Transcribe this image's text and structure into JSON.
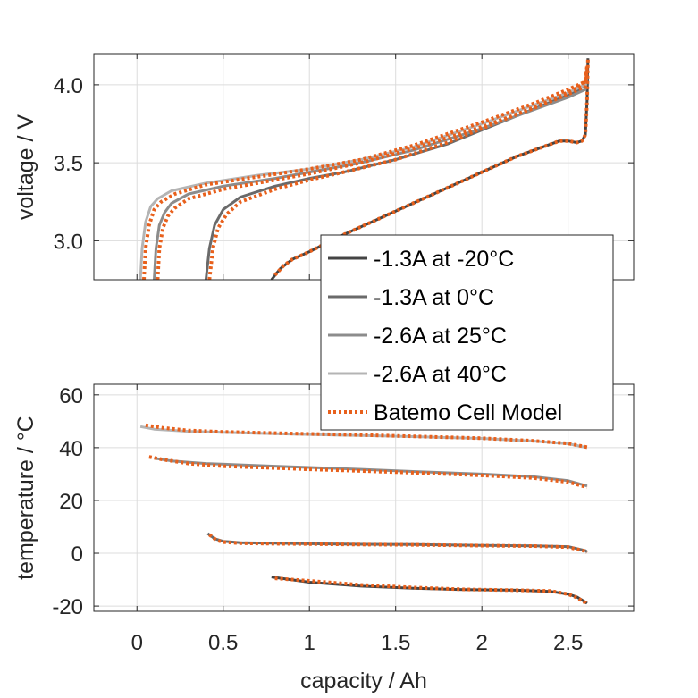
{
  "chart_data": [
    {
      "type": "line",
      "panel": "top",
      "ylabel": "voltage / V",
      "xlabel": "",
      "xlim": [
        -0.25,
        2.88
      ],
      "ylim": [
        2.75,
        4.2
      ],
      "xticks": [
        0,
        0.5,
        1,
        1.5,
        2,
        2.5
      ],
      "yticks": [
        3.0,
        3.5,
        4.0
      ],
      "ytick_labels": [
        "3.0",
        "3.5",
        "4.0"
      ],
      "grid": true,
      "series": [
        {
          "name": "-1.3A at -20°C",
          "color": "#444444",
          "dash": "solid",
          "x": [
            0.78,
            0.83,
            0.9,
            1.0,
            1.2,
            1.4,
            1.6,
            1.8,
            2.0,
            2.2,
            2.35,
            2.45,
            2.5,
            2.55,
            2.58,
            2.6,
            2.61,
            2.615
          ],
          "y": [
            2.75,
            2.82,
            2.88,
            2.93,
            3.04,
            3.14,
            3.24,
            3.34,
            3.44,
            3.54,
            3.6,
            3.64,
            3.64,
            3.63,
            3.64,
            3.68,
            3.9,
            4.17
          ]
        },
        {
          "name": "-1.3A at 0°C",
          "color": "#6a6a6a",
          "dash": "solid",
          "x": [
            0.4,
            0.42,
            0.45,
            0.5,
            0.6,
            0.8,
            1.0,
            1.2,
            1.5,
            1.8,
            2.0,
            2.2,
            2.4,
            2.55,
            2.6,
            2.61
          ],
          "y": [
            2.75,
            2.95,
            3.1,
            3.2,
            3.28,
            3.35,
            3.4,
            3.44,
            3.52,
            3.62,
            3.71,
            3.8,
            3.89,
            3.96,
            4.0,
            4.1
          ]
        },
        {
          "name": "-2.6A at 25°C",
          "color": "#8c8c8c",
          "dash": "solid",
          "x": [
            0.1,
            0.11,
            0.13,
            0.16,
            0.2,
            0.3,
            0.5,
            0.8,
            1.0,
            1.3,
            1.6,
            2.0,
            2.3,
            2.5,
            2.6,
            2.61
          ],
          "y": [
            2.75,
            2.95,
            3.1,
            3.18,
            3.24,
            3.3,
            3.35,
            3.4,
            3.44,
            3.5,
            3.58,
            3.72,
            3.84,
            3.92,
            3.97,
            4.05
          ]
        },
        {
          "name": "-2.6A at 40°C",
          "color": "#b4b4b4",
          "dash": "solid",
          "x": [
            0.02,
            0.03,
            0.05,
            0.08,
            0.12,
            0.2,
            0.4,
            0.7,
            1.0,
            1.3,
            1.6,
            2.0,
            2.3,
            2.5,
            2.6,
            2.61
          ],
          "y": [
            2.75,
            2.95,
            3.12,
            3.22,
            3.27,
            3.32,
            3.37,
            3.42,
            3.46,
            3.52,
            3.6,
            3.75,
            3.87,
            3.95,
            4.0,
            4.07
          ]
        },
        {
          "name": "Batemo Cell Model",
          "color": "#e8601c",
          "dash": "dotted",
          "x": [
            0.8,
            0.85,
            0.9,
            1.0,
            1.2,
            1.4,
            1.6,
            1.8,
            2.0,
            2.2,
            2.35,
            2.45,
            2.5,
            2.55,
            2.58,
            2.6,
            2.61,
            2.615
          ],
          "y": [
            2.78,
            2.84,
            2.88,
            2.93,
            3.04,
            3.14,
            3.24,
            3.34,
            3.44,
            3.54,
            3.6,
            3.64,
            3.64,
            3.63,
            3.64,
            3.68,
            3.9,
            4.17
          ]
        },
        {
          "name": "",
          "color": "#e8601c",
          "dash": "dotted",
          "x": [
            0.42,
            0.44,
            0.47,
            0.52,
            0.6,
            0.8,
            1.0,
            1.2,
            1.5,
            1.8,
            2.0,
            2.2,
            2.4,
            2.55,
            2.6,
            2.61
          ],
          "y": [
            2.75,
            2.95,
            3.08,
            3.17,
            3.25,
            3.33,
            3.39,
            3.44,
            3.52,
            3.63,
            3.72,
            3.81,
            3.9,
            3.98,
            4.02,
            4.12
          ]
        },
        {
          "name": "",
          "color": "#e8601c",
          "dash": "dotted",
          "x": [
            0.12,
            0.13,
            0.15,
            0.18,
            0.22,
            0.3,
            0.5,
            0.8,
            1.0,
            1.3,
            1.6,
            2.0,
            2.3,
            2.5,
            2.6,
            2.61
          ],
          "y": [
            2.75,
            2.95,
            3.08,
            3.16,
            3.21,
            3.27,
            3.33,
            3.39,
            3.43,
            3.5,
            3.59,
            3.73,
            3.85,
            3.94,
            3.99,
            4.08
          ]
        },
        {
          "name": "",
          "color": "#e8601c",
          "dash": "dotted",
          "x": [
            0.04,
            0.05,
            0.07,
            0.1,
            0.14,
            0.22,
            0.4,
            0.7,
            1.0,
            1.3,
            1.6,
            2.0,
            2.3,
            2.5,
            2.6,
            2.61
          ],
          "y": [
            2.75,
            2.95,
            3.1,
            3.2,
            3.25,
            3.3,
            3.36,
            3.41,
            3.46,
            3.52,
            3.61,
            3.76,
            3.88,
            3.97,
            4.02,
            4.1
          ]
        }
      ]
    },
    {
      "type": "line",
      "panel": "bottom",
      "ylabel": "temperature / °C",
      "xlabel": "capacity / Ah",
      "xlim": [
        -0.25,
        2.88
      ],
      "ylim": [
        -22,
        64
      ],
      "xticks": [
        0,
        0.5,
        1,
        1.5,
        2,
        2.5
      ],
      "xtick_labels": [
        "0",
        "0.5",
        "1",
        "1.5",
        "2",
        "2.5"
      ],
      "yticks": [
        -20,
        0,
        20,
        40,
        60
      ],
      "ytick_labels": [
        "-20",
        "0",
        "20",
        "40",
        "60"
      ],
      "grid": true,
      "series": [
        {
          "name": "-1.3A at -20°C",
          "color": "#444444",
          "dash": "solid",
          "x": [
            0.78,
            1.0,
            1.3,
            1.6,
            1.9,
            2.2,
            2.4,
            2.5,
            2.55,
            2.6,
            2.61
          ],
          "y": [
            -9,
            -11,
            -12.5,
            -13.3,
            -13.8,
            -14,
            -14.5,
            -15.5,
            -16.5,
            -18.5,
            -19
          ]
        },
        {
          "name": "-1.3A at 0°C",
          "color": "#6a6a6a",
          "dash": "solid",
          "x": [
            0.41,
            0.45,
            0.5,
            0.6,
            0.8,
            1.0,
            1.3,
            1.6,
            2.0,
            2.3,
            2.5,
            2.6,
            2.61
          ],
          "y": [
            7.5,
            5.5,
            4.5,
            4,
            3.8,
            3.6,
            3.4,
            3.3,
            3,
            2.8,
            2.5,
            1,
            0.5
          ]
        },
        {
          "name": "-2.6A at 25°C",
          "color": "#8c8c8c",
          "dash": "solid",
          "x": [
            0.1,
            0.2,
            0.4,
            0.6,
            0.8,
            1.0,
            1.3,
            1.6,
            2.0,
            2.3,
            2.5,
            2.61
          ],
          "y": [
            36,
            35,
            34,
            33.5,
            33,
            32.5,
            31.8,
            31,
            30,
            29,
            27.5,
            25.5
          ]
        },
        {
          "name": "-2.6A at 40°C",
          "color": "#b4b4b4",
          "dash": "solid",
          "x": [
            0.02,
            0.1,
            0.3,
            0.5,
            0.8,
            1.0,
            1.3,
            1.6,
            2.0,
            2.3,
            2.5,
            2.61
          ],
          "y": [
            48,
            47,
            46.2,
            45.8,
            45.3,
            45,
            44.6,
            44.2,
            43.5,
            42.5,
            41.5,
            40
          ]
        },
        {
          "name": "Batemo Cell Model",
          "color": "#e8601c",
          "dash": "dotted",
          "x": [
            0.8,
            1.0,
            1.3,
            1.6,
            1.9,
            2.2,
            2.4,
            2.5,
            2.55,
            2.6,
            2.61
          ],
          "y": [
            -9.5,
            -10.5,
            -12,
            -13,
            -13.7,
            -14,
            -14.3,
            -15.5,
            -16.8,
            -18.8,
            -19.5
          ]
        },
        {
          "name": "",
          "color": "#e8601c",
          "dash": "dotted",
          "x": [
            0.42,
            0.46,
            0.5,
            0.6,
            0.8,
            1.0,
            1.3,
            1.6,
            2.0,
            2.3,
            2.5,
            2.6,
            2.61
          ],
          "y": [
            7,
            5,
            4.2,
            3.8,
            3.6,
            3.5,
            3.3,
            3.2,
            2.9,
            2.7,
            2.3,
            0.8,
            0.2
          ]
        },
        {
          "name": "",
          "color": "#e8601c",
          "dash": "dotted",
          "x": [
            0.07,
            0.15,
            0.3,
            0.5,
            0.8,
            1.0,
            1.3,
            1.6,
            2.0,
            2.3,
            2.5,
            2.61
          ],
          "y": [
            36.5,
            35.5,
            34,
            33,
            32.3,
            31.8,
            31.2,
            30.5,
            29.5,
            28.5,
            27,
            25
          ]
        },
        {
          "name": "",
          "color": "#e8601c",
          "dash": "dotted",
          "x": [
            0.05,
            0.15,
            0.3,
            0.5,
            0.8,
            1.0,
            1.3,
            1.6,
            2.0,
            2.3,
            2.5,
            2.61
          ],
          "y": [
            48.5,
            47.5,
            46.5,
            46,
            45.5,
            45.2,
            44.8,
            44.3,
            43.6,
            42.6,
            41.6,
            40.2
          ]
        }
      ]
    }
  ],
  "legend": {
    "location": "center-right",
    "entries": [
      {
        "label": "-1.3A at -20°C",
        "color": "#444444",
        "dash": "solid"
      },
      {
        "label": "-1.3A at 0°C",
        "color": "#6a6a6a",
        "dash": "solid"
      },
      {
        "label": "-2.6A at 25°C",
        "color": "#8c8c8c",
        "dash": "solid"
      },
      {
        "label": "-2.6A at 40°C",
        "color": "#b4b4b4",
        "dash": "solid"
      },
      {
        "label": "Batemo Cell Model",
        "color": "#e8601c",
        "dash": "dotted"
      }
    ]
  }
}
